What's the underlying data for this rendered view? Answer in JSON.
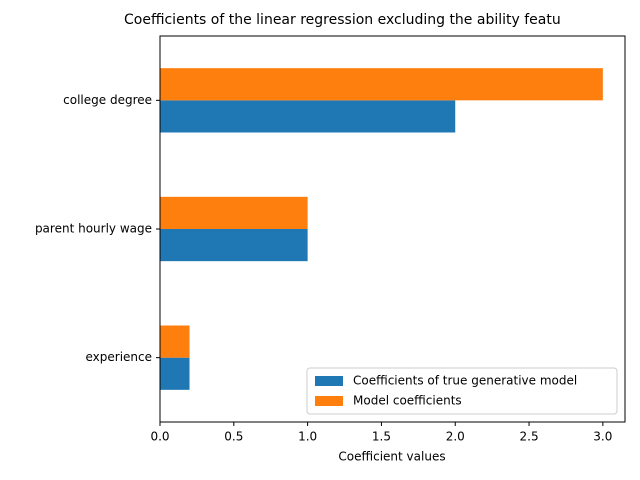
{
  "chart_data": {
    "type": "barh",
    "title": "Coefficients of the linear regression excluding the ability featu",
    "x_label": "Coefficient values",
    "categories": [
      "experience",
      "parent hourly wage",
      "college degree"
    ],
    "series": [
      {
        "name": "Coefficients of true generative model",
        "color": "#1f77b4",
        "values": [
          0.2,
          1,
          2
        ]
      },
      {
        "name": "Model coefficients",
        "color": "#ff7f0e",
        "values": [
          0.2,
          1,
          3
        ]
      }
    ],
    "xlim": [
      0,
      3.15
    ],
    "xticks": [
      {
        "value": 0,
        "label": "0.0"
      },
      {
        "value": 0.5,
        "label": "0.5"
      },
      {
        "value": 1,
        "label": "1.0"
      },
      {
        "value": 1.5,
        "label": "1.5"
      },
      {
        "value": 2,
        "label": "2.0"
      },
      {
        "value": 2.5,
        "label": "2.5"
      },
      {
        "value": 3,
        "label": "3.0"
      }
    ],
    "legend": "lower right"
  }
}
